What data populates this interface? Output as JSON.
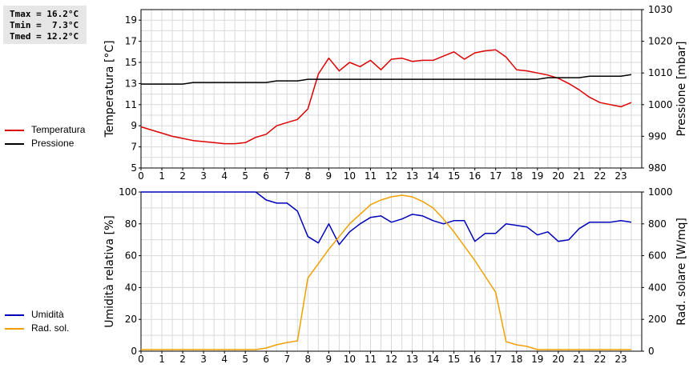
{
  "stats": {
    "tmax": "Tmax = 16.2°C",
    "tmin": "Tmin =  7.3°C",
    "tmed": "Tmed = 12.2°C"
  },
  "legend_top": [
    {
      "label": "Temperatura",
      "color": "#dd0000"
    },
    {
      "label": "Pressione",
      "color": "#000000"
    }
  ],
  "legend_bottom": [
    {
      "label": "Umidità",
      "color": "#0000bb"
    },
    {
      "label": "Rad. sol.",
      "color": "#f0a000"
    }
  ],
  "chart_data": [
    {
      "type": "line",
      "x_ticks": [
        "0",
        "1",
        "2",
        "3",
        "4",
        "5",
        "6",
        "7",
        "8",
        "9",
        "10",
        "11",
        "12",
        "13",
        "14",
        "15",
        "16",
        "17",
        "18",
        "19",
        "20",
        "21",
        "22",
        "23"
      ],
      "xlim": [
        0,
        24
      ],
      "ylabel_left": "Temperatura [°C]",
      "ylabel_right": "Pressione [mbar]",
      "ylim_left": [
        5,
        20
      ],
      "yticks_left": [
        "5",
        "7",
        "9",
        "11",
        "13",
        "15",
        "17",
        "19"
      ],
      "ylim_right": [
        980,
        1030
      ],
      "yticks_right": [
        "980",
        "990",
        "1000",
        "1010",
        "1020",
        "1030"
      ],
      "grid": true,
      "series": [
        {
          "name": "Temperatura",
          "axis": "left",
          "color": "#dd0000",
          "x": [
            0,
            0.5,
            1,
            1.5,
            2,
            2.5,
            3,
            3.5,
            4,
            4.5,
            5,
            5.5,
            6,
            6.5,
            7,
            7.5,
            8,
            8.5,
            9,
            9.5,
            10,
            10.5,
            11,
            11.5,
            12,
            12.5,
            13,
            13.5,
            14,
            14.5,
            15,
            15.5,
            16,
            16.5,
            17,
            17.5,
            18,
            18.5,
            19,
            19.5,
            20,
            20.5,
            21,
            21.5,
            22,
            22.5,
            23,
            23.5
          ],
          "values": [
            8.9,
            8.6,
            8.3,
            8.0,
            7.8,
            7.6,
            7.5,
            7.4,
            7.3,
            7.3,
            7.4,
            7.9,
            8.2,
            9.0,
            9.3,
            9.6,
            10.6,
            13.9,
            15.4,
            14.2,
            15.0,
            14.6,
            15.2,
            14.3,
            15.3,
            15.4,
            15.1,
            15.2,
            15.2,
            15.6,
            16.0,
            15.3,
            15.9,
            16.1,
            16.2,
            15.5,
            14.3,
            14.2,
            14.0,
            13.8,
            13.5,
            13.0,
            12.4,
            11.7,
            11.2,
            11.0,
            10.8,
            11.2
          ]
        },
        {
          "name": "Pressione",
          "axis": "right",
          "color": "#000000",
          "x": [
            0,
            2,
            2.5,
            6,
            6.5,
            7.5,
            8,
            19,
            19.5,
            21,
            21.5,
            23,
            23.5
          ],
          "values": [
            1006.5,
            1006.5,
            1007,
            1007,
            1007.5,
            1007.5,
            1008,
            1008,
            1008.5,
            1008.5,
            1009,
            1009,
            1009.5
          ]
        }
      ]
    },
    {
      "type": "line",
      "x_ticks": [
        "0",
        "1",
        "2",
        "3",
        "4",
        "5",
        "6",
        "7",
        "8",
        "9",
        "10",
        "11",
        "12",
        "13",
        "14",
        "15",
        "16",
        "17",
        "18",
        "19",
        "20",
        "21",
        "22",
        "23"
      ],
      "xlim": [
        0,
        24
      ],
      "ylabel_left": "Umidità relativa [%]",
      "ylabel_right": "Rad. solare [W/mq]",
      "ylim_left": [
        0,
        100
      ],
      "yticks_left": [
        "0",
        "20",
        "40",
        "60",
        "80",
        "100"
      ],
      "ylim_right": [
        0,
        1000
      ],
      "yticks_right": [
        "0",
        "200",
        "400",
        "600",
        "800",
        "1000"
      ],
      "grid": true,
      "series": [
        {
          "name": "Umidità",
          "axis": "left",
          "color": "#0000bb",
          "x": [
            0,
            5.5,
            6,
            6.5,
            7,
            7.5,
            8,
            8.5,
            9,
            9.5,
            10,
            10.5,
            11,
            11.5,
            12,
            12.5,
            13,
            13.5,
            14,
            14.5,
            15,
            15.5,
            16,
            16.5,
            17,
            17.5,
            18,
            18.5,
            19,
            19.5,
            20,
            20.5,
            21,
            21.5,
            22,
            22.5,
            23,
            23.5
          ],
          "values": [
            100,
            100,
            95,
            93,
            93,
            88,
            72,
            68,
            80,
            67,
            75,
            80,
            84,
            85,
            81,
            83,
            86,
            85,
            82,
            80,
            82,
            82,
            69,
            74,
            74,
            80,
            79,
            78,
            73,
            75,
            69,
            70,
            77,
            81,
            81,
            81,
            82,
            81
          ]
        },
        {
          "name": "Rad. sol.",
          "axis": "right",
          "color": "#f0a000",
          "x": [
            0,
            5.5,
            6,
            6.5,
            7,
            7.5,
            8,
            8.5,
            9,
            9.5,
            10,
            10.5,
            11,
            11.5,
            12,
            12.5,
            13,
            13.5,
            14,
            14.5,
            15,
            15.5,
            16,
            16.5,
            17,
            17.5,
            18,
            18.5,
            19,
            23.5
          ],
          "values": [
            10,
            10,
            20,
            40,
            55,
            65,
            460,
            550,
            640,
            720,
            800,
            860,
            920,
            950,
            970,
            980,
            970,
            940,
            900,
            830,
            750,
            660,
            570,
            470,
            370,
            60,
            40,
            30,
            10,
            10
          ]
        }
      ]
    }
  ]
}
